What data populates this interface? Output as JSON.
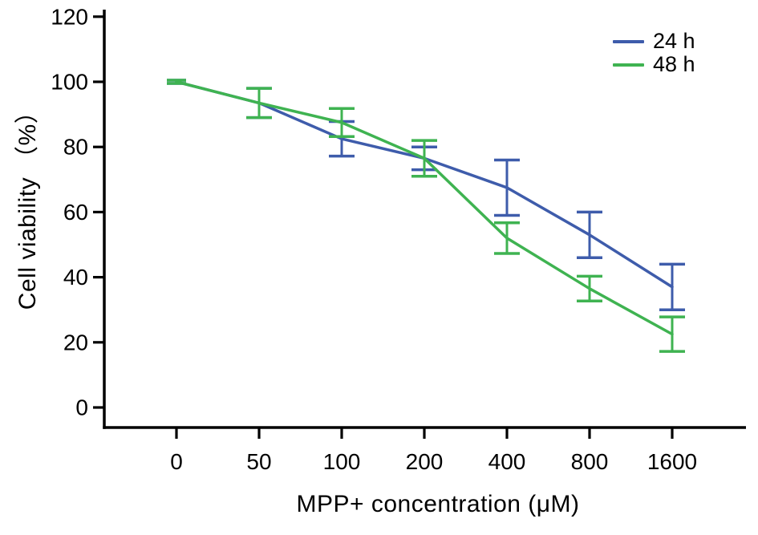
{
  "figure": {
    "background": "#ffffff",
    "axis_color": "#000000",
    "text_color": "#000000"
  },
  "chart_data": {
    "type": "line",
    "title": "",
    "xlabel": "MPP+ concentration (μM)",
    "ylabel": "Cell viability （%）",
    "categories": [
      "0",
      "50",
      "100",
      "200",
      "400",
      "800",
      "1600"
    ],
    "x_values_uM": [
      0,
      50,
      100,
      200,
      400,
      800,
      1600
    ],
    "y_ticks": [
      0,
      20,
      40,
      60,
      80,
      100,
      120
    ],
    "ylim": [
      0,
      128
    ],
    "grid": false,
    "legend_position": "top-right",
    "error_bars": true,
    "series": [
      {
        "name": "24 h",
        "color": "#3e5cab",
        "values": [
          100,
          93.5,
          82.5,
          76.5,
          67.5,
          53,
          37
        ],
        "errors": [
          0.5,
          4.5,
          5.3,
          3.5,
          8.5,
          7,
          7
        ]
      },
      {
        "name": "48 h",
        "color": "#3fb351",
        "values": [
          100,
          93.5,
          87.5,
          76.5,
          52,
          36.5,
          22.5
        ],
        "errors": [
          0.5,
          4.5,
          4.3,
          5.5,
          4.7,
          3.8,
          5.3
        ]
      }
    ]
  }
}
